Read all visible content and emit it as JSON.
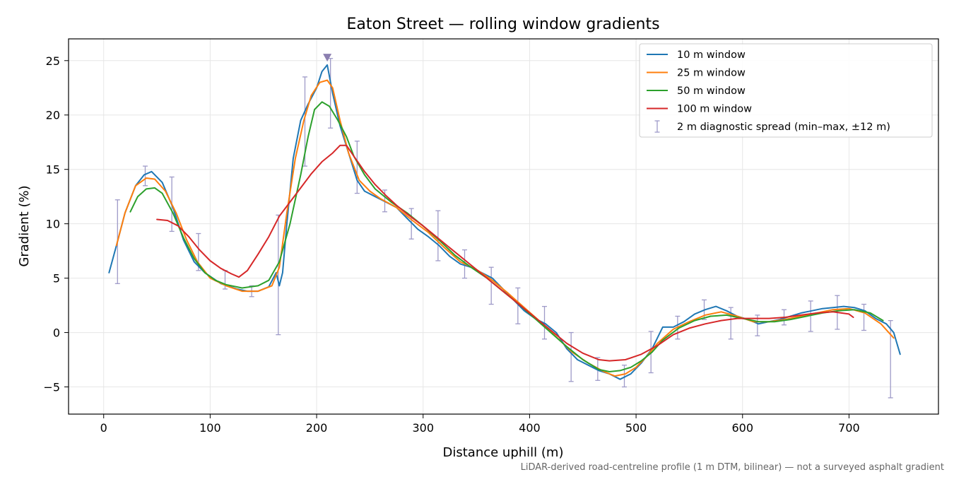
{
  "chart_data": {
    "type": "line",
    "title": "Eaton Street — rolling window gradients",
    "xlabel": "Distance uphill (m)",
    "ylabel": "Gradient (%)",
    "xlim": [
      -33,
      784
    ],
    "ylim": [
      -7.5,
      27
    ],
    "xticks": [
      0,
      100,
      200,
      300,
      400,
      500,
      600,
      700
    ],
    "yticks": [
      -5,
      0,
      5,
      10,
      15,
      20,
      25
    ],
    "grid": true,
    "legend_position": "top-right",
    "footnote": "LiDAR-derived road-centreline profile (1 m DTM, bilinear) — not a surveyed asphalt gradient",
    "peak_marker": {
      "x": 210,
      "y": 25.3
    },
    "series": [
      {
        "name": "10 m window",
        "color": "#1f77b4",
        "points": [
          [
            5,
            5.5
          ],
          [
            12,
            8
          ],
          [
            20,
            11
          ],
          [
            30,
            13.5
          ],
          [
            38,
            14.5
          ],
          [
            45,
            14.8
          ],
          [
            55,
            13.8
          ],
          [
            65,
            11.5
          ],
          [
            75,
            8.5
          ],
          [
            85,
            6.5
          ],
          [
            95,
            5.5
          ],
          [
            110,
            4.5
          ],
          [
            125,
            4.0
          ],
          [
            135,
            3.8
          ],
          [
            145,
            3.8
          ],
          [
            155,
            4.2
          ],
          [
            162,
            5.5
          ],
          [
            165,
            4.3
          ],
          [
            168,
            5.5
          ],
          [
            172,
            10
          ],
          [
            178,
            16
          ],
          [
            185,
            19.5
          ],
          [
            192,
            21
          ],
          [
            200,
            22.5
          ],
          [
            205,
            24
          ],
          [
            210,
            24.6
          ],
          [
            215,
            22
          ],
          [
            222,
            19
          ],
          [
            230,
            16.5
          ],
          [
            238,
            14
          ],
          [
            245,
            13
          ],
          [
            255,
            12.5
          ],
          [
            265,
            12
          ],
          [
            275,
            11.5
          ],
          [
            285,
            10.5
          ],
          [
            295,
            9.5
          ],
          [
            305,
            8.8
          ],
          [
            315,
            8
          ],
          [
            325,
            7
          ],
          [
            335,
            6.3
          ],
          [
            345,
            6
          ],
          [
            355,
            5.5
          ],
          [
            365,
            5
          ],
          [
            375,
            4
          ],
          [
            385,
            3
          ],
          [
            395,
            2
          ],
          [
            405,
            1.3
          ],
          [
            415,
            0.8
          ],
          [
            425,
            0
          ],
          [
            435,
            -1.5
          ],
          [
            445,
            -2.5
          ],
          [
            455,
            -3
          ],
          [
            465,
            -3.5
          ],
          [
            475,
            -3.8
          ],
          [
            485,
            -4.3
          ],
          [
            495,
            -3.8
          ],
          [
            505,
            -2.8
          ],
          [
            515,
            -1.5
          ],
          [
            525,
            0.5
          ],
          [
            535,
            0.5
          ],
          [
            545,
            1
          ],
          [
            555,
            1.7
          ],
          [
            565,
            2.1
          ],
          [
            575,
            2.4
          ],
          [
            585,
            2
          ],
          [
            595,
            1.5
          ],
          [
            605,
            1.2
          ],
          [
            615,
            0.8
          ],
          [
            625,
            1
          ],
          [
            635,
            1.2
          ],
          [
            645,
            1.5
          ],
          [
            655,
            1.8
          ],
          [
            665,
            2
          ],
          [
            675,
            2.2
          ],
          [
            685,
            2.3
          ],
          [
            695,
            2.4
          ],
          [
            705,
            2.3
          ],
          [
            715,
            2
          ],
          [
            725,
            1.3
          ],
          [
            735,
            0.8
          ],
          [
            742,
            0
          ],
          [
            748,
            -2
          ]
        ]
      },
      {
        "name": "25 m window",
        "color": "#ff7f0e",
        "points": [
          [
            12,
            8
          ],
          [
            20,
            11
          ],
          [
            30,
            13.5
          ],
          [
            40,
            14.2
          ],
          [
            48,
            14.1
          ],
          [
            58,
            13
          ],
          [
            68,
            11
          ],
          [
            78,
            8.5
          ],
          [
            88,
            6.5
          ],
          [
            100,
            5
          ],
          [
            115,
            4.3
          ],
          [
            130,
            3.8
          ],
          [
            145,
            3.8
          ],
          [
            158,
            4.3
          ],
          [
            165,
            6
          ],
          [
            172,
            11
          ],
          [
            180,
            16
          ],
          [
            188,
            19.5
          ],
          [
            195,
            21.8
          ],
          [
            203,
            23
          ],
          [
            210,
            23.2
          ],
          [
            215,
            22.5
          ],
          [
            222,
            19.5
          ],
          [
            230,
            16.5
          ],
          [
            240,
            14
          ],
          [
            250,
            13
          ],
          [
            260,
            12.3
          ],
          [
            275,
            11.5
          ],
          [
            290,
            10.3
          ],
          [
            305,
            9.2
          ],
          [
            320,
            7.8
          ],
          [
            335,
            6.5
          ],
          [
            350,
            5.8
          ],
          [
            365,
            4.8
          ],
          [
            380,
            3.6
          ],
          [
            395,
            2.3
          ],
          [
            410,
            1
          ],
          [
            425,
            -0.4
          ],
          [
            440,
            -1.8
          ],
          [
            455,
            -2.8
          ],
          [
            470,
            -3.6
          ],
          [
            480,
            -4
          ],
          [
            490,
            -3.8
          ],
          [
            500,
            -3.2
          ],
          [
            510,
            -2.2
          ],
          [
            520,
            -1
          ],
          [
            535,
            0.3
          ],
          [
            550,
            1
          ],
          [
            565,
            1.6
          ],
          [
            580,
            1.9
          ],
          [
            595,
            1.5
          ],
          [
            610,
            1
          ],
          [
            625,
            1
          ],
          [
            640,
            1.2
          ],
          [
            655,
            1.5
          ],
          [
            670,
            1.8
          ],
          [
            685,
            2.1
          ],
          [
            700,
            2.2
          ],
          [
            715,
            1.8
          ],
          [
            730,
            0.8
          ],
          [
            742,
            -0.5
          ]
        ]
      },
      {
        "name": "50 m window",
        "color": "#2ca02c",
        "points": [
          [
            25,
            11.1
          ],
          [
            32,
            12.5
          ],
          [
            40,
            13.2
          ],
          [
            48,
            13.3
          ],
          [
            55,
            12.8
          ],
          [
            65,
            11
          ],
          [
            75,
            8.7
          ],
          [
            85,
            6.8
          ],
          [
            95,
            5.5
          ],
          [
            105,
            4.8
          ],
          [
            115,
            4.4
          ],
          [
            130,
            4.1
          ],
          [
            145,
            4.3
          ],
          [
            155,
            4.8
          ],
          [
            165,
            6.5
          ],
          [
            175,
            10
          ],
          [
            185,
            14.5
          ],
          [
            192,
            18
          ],
          [
            198,
            20.5
          ],
          [
            205,
            21.2
          ],
          [
            212,
            20.8
          ],
          [
            220,
            19.5
          ],
          [
            228,
            18
          ],
          [
            235,
            16.2
          ],
          [
            245,
            14.5
          ],
          [
            255,
            13.2
          ],
          [
            270,
            12
          ],
          [
            285,
            11
          ],
          [
            300,
            9.8
          ],
          [
            315,
            8.5
          ],
          [
            330,
            7.1
          ],
          [
            345,
            6
          ],
          [
            360,
            5
          ],
          [
            375,
            3.8
          ],
          [
            390,
            2.6
          ],
          [
            405,
            1.3
          ],
          [
            420,
            0
          ],
          [
            435,
            -1.3
          ],
          [
            450,
            -2.5
          ],
          [
            465,
            -3.4
          ],
          [
            475,
            -3.6
          ],
          [
            485,
            -3.5
          ],
          [
            495,
            -3.2
          ],
          [
            505,
            -2.6
          ],
          [
            515,
            -1.8
          ],
          [
            525,
            -0.7
          ],
          [
            540,
            0.4
          ],
          [
            555,
            1.1
          ],
          [
            570,
            1.5
          ],
          [
            585,
            1.6
          ],
          [
            600,
            1.3
          ],
          [
            615,
            1
          ],
          [
            630,
            1
          ],
          [
            645,
            1.2
          ],
          [
            660,
            1.5
          ],
          [
            675,
            1.8
          ],
          [
            690,
            2
          ],
          [
            705,
            2.1
          ],
          [
            720,
            1.8
          ],
          [
            732,
            1.1
          ]
        ]
      },
      {
        "name": "100 m window",
        "color": "#d62728",
        "points": [
          [
            50,
            10.4
          ],
          [
            60,
            10.3
          ],
          [
            70,
            9.8
          ],
          [
            80,
            8.8
          ],
          [
            90,
            7.6
          ],
          [
            100,
            6.6
          ],
          [
            110,
            5.9
          ],
          [
            120,
            5.4
          ],
          [
            127,
            5.1
          ],
          [
            135,
            5.7
          ],
          [
            145,
            7.2
          ],
          [
            155,
            8.8
          ],
          [
            165,
            10.7
          ],
          [
            175,
            12
          ],
          [
            185,
            13.3
          ],
          [
            195,
            14.6
          ],
          [
            205,
            15.7
          ],
          [
            215,
            16.5
          ],
          [
            222,
            17.2
          ],
          [
            228,
            17.2
          ],
          [
            235,
            16.2
          ],
          [
            245,
            14.8
          ],
          [
            255,
            13.6
          ],
          [
            265,
            12.6
          ],
          [
            275,
            11.7
          ],
          [
            285,
            10.9
          ],
          [
            300,
            9.8
          ],
          [
            315,
            8.6
          ],
          [
            330,
            7.4
          ],
          [
            345,
            6.2
          ],
          [
            360,
            5
          ],
          [
            375,
            3.8
          ],
          [
            390,
            2.6
          ],
          [
            405,
            1.4
          ],
          [
            420,
            0.2
          ],
          [
            435,
            -1
          ],
          [
            450,
            -1.9
          ],
          [
            465,
            -2.5
          ],
          [
            475,
            -2.6
          ],
          [
            490,
            -2.5
          ],
          [
            505,
            -2
          ],
          [
            520,
            -1.2
          ],
          [
            535,
            -0.2
          ],
          [
            550,
            0.4
          ],
          [
            565,
            0.8
          ],
          [
            580,
            1.1
          ],
          [
            595,
            1.3
          ],
          [
            610,
            1.3
          ],
          [
            625,
            1.3
          ],
          [
            640,
            1.4
          ],
          [
            655,
            1.6
          ],
          [
            670,
            1.8
          ],
          [
            685,
            1.9
          ],
          [
            700,
            1.7
          ],
          [
            704,
            1.4
          ]
        ]
      }
    ],
    "errorbars": {
      "name": "2 m diagnostic spread (min–max, ±12 m)",
      "color": "#9e9ac8",
      "points": [
        [
          13,
          4.5,
          12.2
        ],
        [
          39,
          13.5,
          15.3
        ],
        [
          64,
          9.3,
          14.3
        ],
        [
          89,
          5.7,
          9.1
        ],
        [
          114,
          4,
          5.7
        ],
        [
          139,
          3.3,
          4.3
        ],
        [
          164,
          -0.2,
          10.8
        ],
        [
          189,
          15.3,
          23.5
        ],
        [
          213,
          18.8,
          25.2
        ],
        [
          238,
          12.8,
          17.6
        ],
        [
          264,
          11.1,
          13.1
        ],
        [
          289,
          8.6,
          11.4
        ],
        [
          314,
          6.6,
          11.2
        ],
        [
          339,
          5,
          7.6
        ],
        [
          364,
          2.6,
          6
        ],
        [
          389,
          0.8,
          4.1
        ],
        [
          414,
          -0.6,
          2.4
        ],
        [
          439,
          -4.5,
          0
        ],
        [
          464,
          -4.4,
          -2.3
        ],
        [
          489,
          -5,
          -3
        ],
        [
          514,
          -3.7,
          0.1
        ],
        [
          539,
          -0.6,
          1.5
        ],
        [
          564,
          1.2,
          3
        ],
        [
          589,
          -0.6,
          2.3
        ],
        [
          614,
          -0.3,
          1.6
        ],
        [
          639,
          0.7,
          2.1
        ],
        [
          664,
          0.1,
          2.9
        ],
        [
          689,
          0.3,
          3.4
        ],
        [
          714,
          0.2,
          2.6
        ],
        [
          739,
          -6,
          1.1
        ]
      ]
    }
  }
}
